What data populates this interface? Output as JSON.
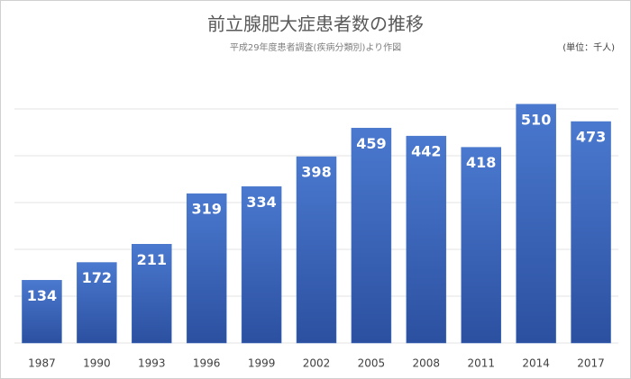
{
  "chart_data": {
    "type": "bar",
    "title": "前立腺肥大症患者数の推移",
    "subtitle": "平成29年度患者調査(疾病分類別)より作図",
    "unit_note": "(単位：千人)",
    "categories": [
      "1987",
      "1990",
      "1993",
      "1996",
      "1999",
      "2002",
      "2005",
      "2008",
      "2011",
      "2014",
      "2017"
    ],
    "values": [
      134,
      172,
      211,
      319,
      334,
      398,
      459,
      442,
      418,
      510,
      473
    ],
    "color": "#4472c4",
    "ylim": [
      0,
      600
    ],
    "yticks": [
      0,
      100,
      200,
      300,
      400,
      500
    ],
    "grid": true
  }
}
